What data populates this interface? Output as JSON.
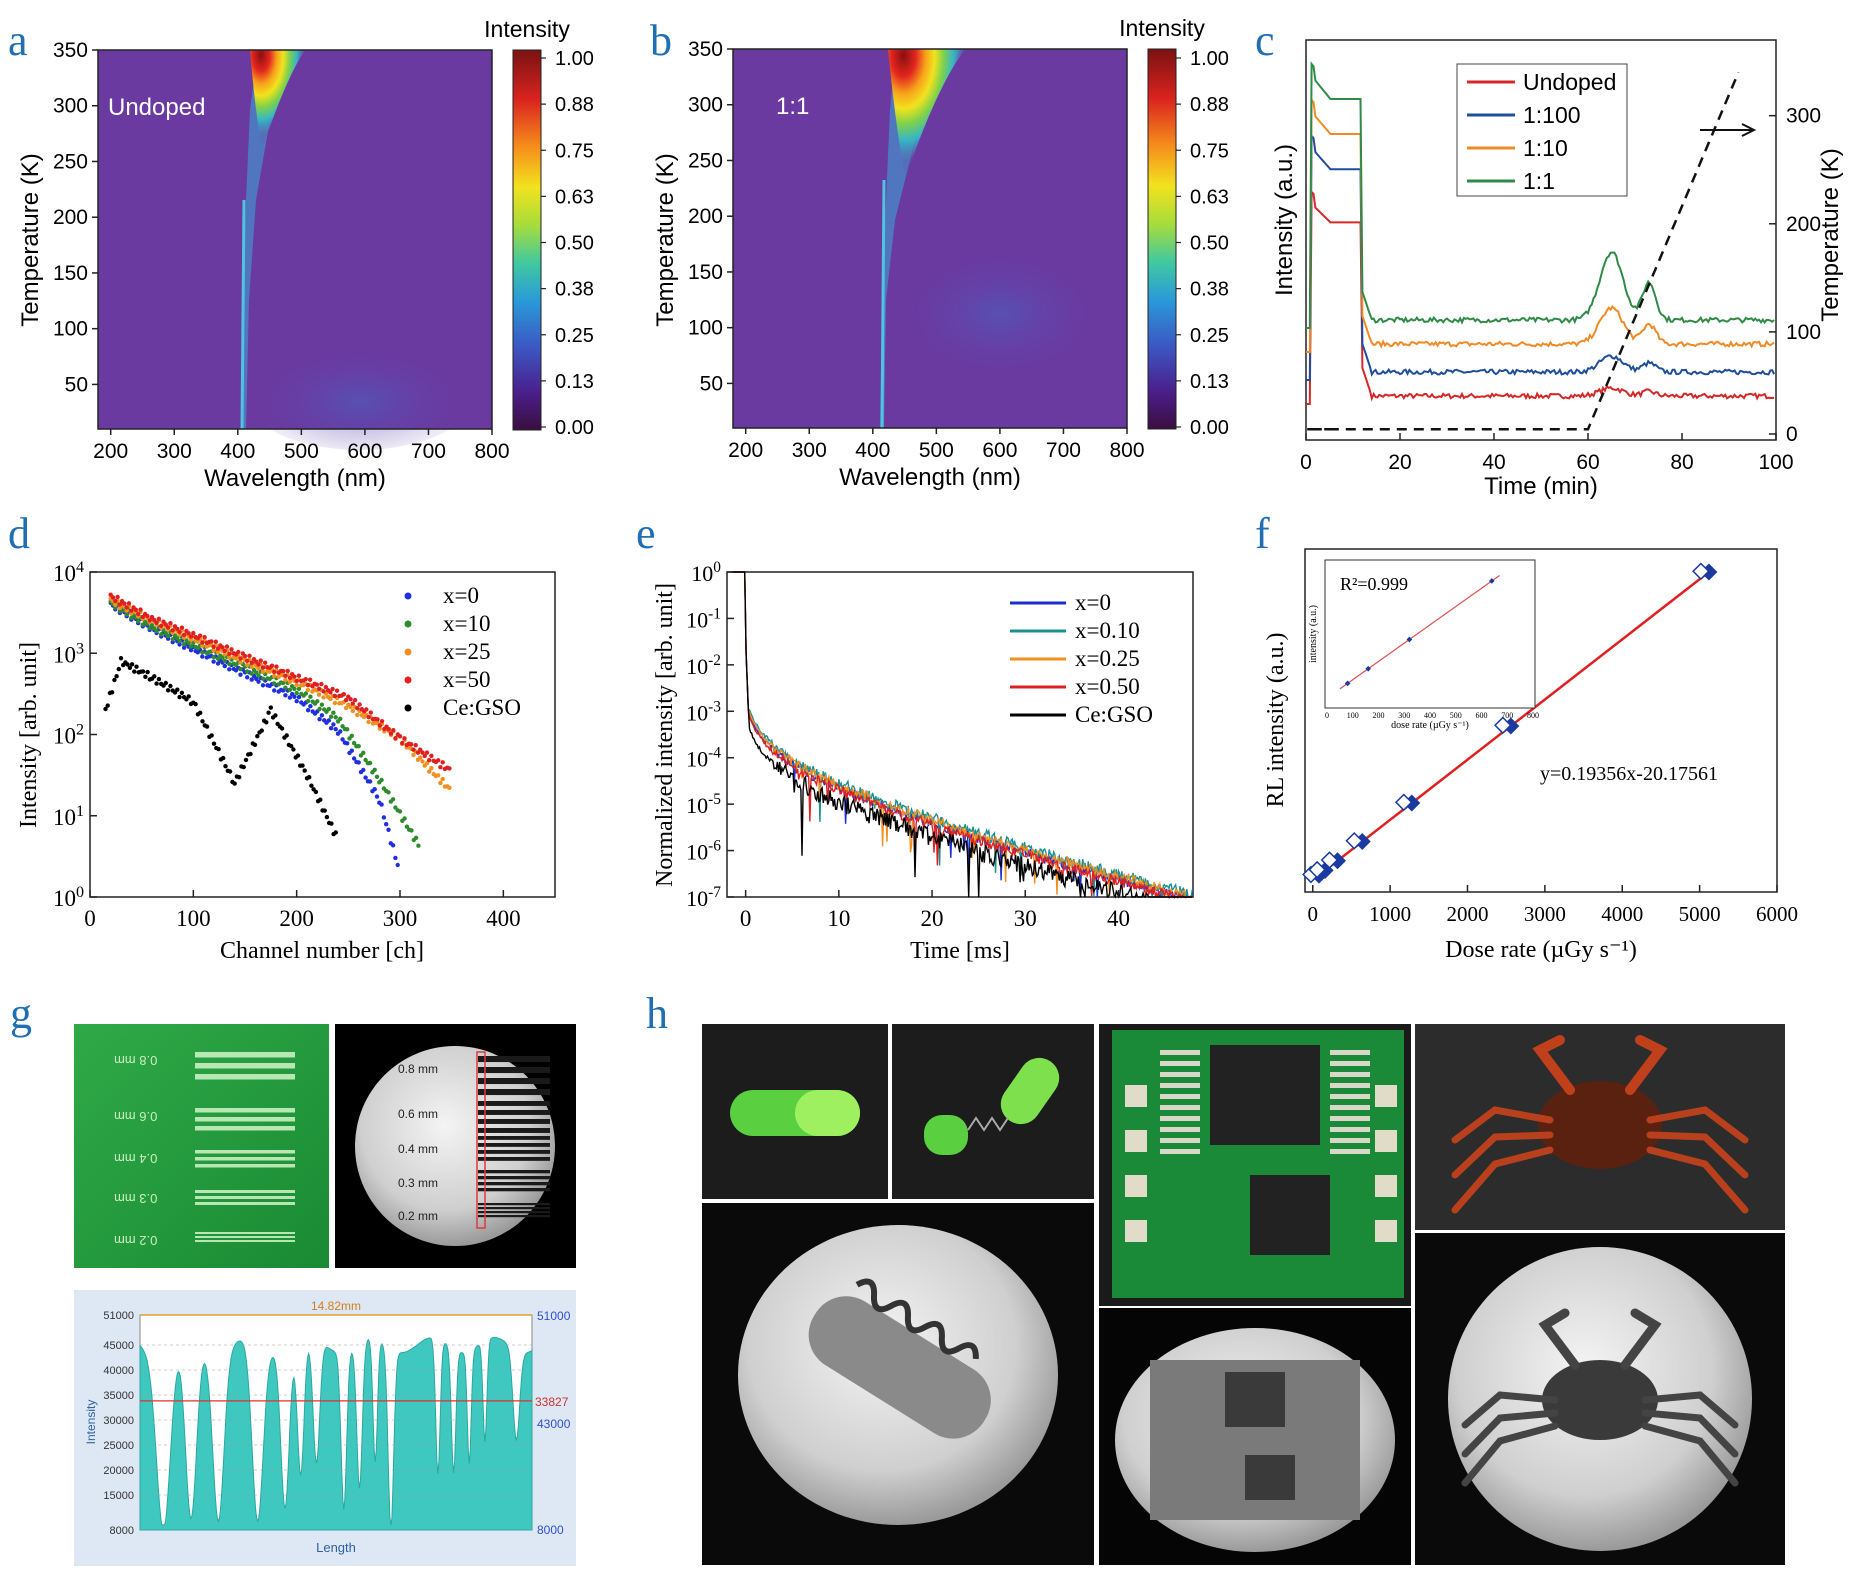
{
  "panel_labels": {
    "a": "a",
    "b": "b",
    "c": "c",
    "d": "d",
    "e": "e",
    "f": "f",
    "g": "g",
    "h": "h"
  },
  "chart_data": [
    {
      "panel": "a",
      "type": "heatmap",
      "xlabel": "Wavelength (nm)",
      "ylabel": "Temperature (K)",
      "xlim": [
        180,
        800
      ],
      "ylim": [
        10,
        350
      ],
      "xticks": [
        200,
        300,
        400,
        500,
        600,
        700,
        800
      ],
      "yticks": [
        50,
        100,
        150,
        200,
        250,
        300,
        350
      ],
      "annotation": "Undoped",
      "colorbar_title": "Intensity",
      "colorbar_ticks": [
        "1.00",
        "0.88",
        "0.75",
        "0.63",
        "0.50",
        "0.38",
        "0.25",
        "0.13",
        "0.00"
      ],
      "colorbar_colors": [
        "#3b0e3e",
        "#4a1f8c",
        "#3b58c4",
        "#2a9ad8",
        "#41c9a0",
        "#a8dc3a",
        "#f2e21e",
        "#f58a1c",
        "#d9231e",
        "#7a1212"
      ],
      "background_color": "#6a3aa0",
      "peak_nm": 425
    },
    {
      "panel": "b",
      "type": "heatmap",
      "xlabel": "Wavelength (nm)",
      "ylabel": "Temperature (K)",
      "xlim": [
        180,
        800
      ],
      "ylim": [
        10,
        350
      ],
      "xticks": [
        200,
        300,
        400,
        500,
        600,
        700,
        800
      ],
      "yticks": [
        50,
        100,
        150,
        200,
        250,
        300,
        350
      ],
      "annotation": "1:1",
      "colorbar_title": "Intensity",
      "colorbar_ticks": [
        "1.00",
        "0.88",
        "0.75",
        "0.63",
        "0.50",
        "0.38",
        "0.25",
        "0.13",
        "0.00"
      ],
      "background_color": "#6a3aa0",
      "peak_nm": 425
    },
    {
      "panel": "c",
      "type": "line",
      "xlabel": "Time (min)",
      "ylabel": "Intensity (a.u.)",
      "y2label": "Temperature (K)",
      "xlim": [
        0,
        100
      ],
      "xticks": [
        0,
        20,
        40,
        60,
        80,
        100
      ],
      "y2lim": [
        0,
        370
      ],
      "y2ticks": [
        0,
        100,
        200,
        300
      ],
      "series": [
        {
          "name": "Undoped",
          "color": "#d62728",
          "irradiated": 0.62,
          "baseline": 0.11,
          "tl_peak": 0.02
        },
        {
          "name": "1:100",
          "color": "#1f4e9c",
          "irradiated": 0.76,
          "baseline": 0.17,
          "tl_peak": 0.04
        },
        {
          "name": "1:10",
          "color": "#f08a24",
          "irradiated": 0.85,
          "baseline": 0.24,
          "tl_peak": 0.09
        },
        {
          "name": "1:1",
          "color": "#2e8b47",
          "irradiated": 0.94,
          "baseline": 0.3,
          "tl_peak": 0.17
        }
      ],
      "temperature_profile": {
        "time": [
          0,
          60,
          92
        ],
        "temperature": [
          10,
          10,
          340
        ],
        "style": "dashed"
      }
    },
    {
      "panel": "d",
      "type": "scatter",
      "xlabel": "Channel number [ch]",
      "ylabel": "Intensity [arb. unit]",
      "xlim": [
        0,
        450
      ],
      "ylim_log10": [
        0,
        4
      ],
      "yscale": "log",
      "xticks": [
        0,
        100,
        200,
        300,
        400
      ],
      "yticks": [
        "10^0",
        "10^1",
        "10^2",
        "10^3",
        "10^4"
      ],
      "series": [
        {
          "name": "x=0",
          "color": "#1f2fe0",
          "x": [
            20,
            60,
            100,
            150,
            200,
            240,
            280,
            300
          ],
          "log10y": [
            3.6,
            3.3,
            3.05,
            2.75,
            2.45,
            2.05,
            1.2,
            0.3
          ]
        },
        {
          "name": "x=10",
          "color": "#2e8b2e",
          "x": [
            20,
            60,
            100,
            150,
            200,
            240,
            280,
            320
          ],
          "log10y": [
            3.62,
            3.32,
            3.1,
            2.82,
            2.55,
            2.2,
            1.45,
            0.6
          ]
        },
        {
          "name": "x=25",
          "color": "#f09020",
          "x": [
            20,
            60,
            100,
            150,
            200,
            250,
            300,
            350
          ],
          "log10y": [
            3.65,
            3.4,
            3.18,
            2.9,
            2.65,
            2.35,
            1.95,
            1.3
          ]
        },
        {
          "name": "x=50",
          "color": "#e02020",
          "x": [
            20,
            60,
            100,
            150,
            200,
            250,
            300,
            350
          ],
          "log10y": [
            3.7,
            3.42,
            3.22,
            2.95,
            2.7,
            2.45,
            1.95,
            1.55
          ]
        },
        {
          "name": "Ce:GSO",
          "color": "#000000",
          "x": [
            15,
            30,
            60,
            100,
            140,
            175,
            210,
            240
          ],
          "log10y": [
            2.3,
            2.9,
            2.7,
            2.4,
            1.4,
            2.3,
            1.5,
            0.7
          ]
        }
      ]
    },
    {
      "panel": "e",
      "type": "line",
      "xlabel": "Time [ms]",
      "ylabel": "Normalized intensity [arb. unit]",
      "xlim": [
        -2,
        48
      ],
      "ylim_log10": [
        -7,
        0
      ],
      "yscale": "log",
      "xticks": [
        0,
        10,
        20,
        30,
        40
      ],
      "yticks": [
        "10^0",
        "10^-1",
        "10^-2",
        "10^-3",
        "10^-4",
        "10^-5",
        "10^-6",
        "10^-7"
      ],
      "series": [
        {
          "name": "x=0",
          "color": "#1a2fd0"
        },
        {
          "name": "x=0.10",
          "color": "#1a9090"
        },
        {
          "name": "x=0.25",
          "color": "#f09020"
        },
        {
          "name": "x=0.50",
          "color": "#e02020"
        },
        {
          "name": "Ce:GSO",
          "color": "#000000"
        }
      ]
    },
    {
      "panel": "f",
      "type": "scatter",
      "xlabel": "Dose rate (µGy s⁻¹)",
      "ylabel": "RL intensity (a.u.)",
      "xlim": [
        -100,
        6000
      ],
      "xticks": [
        0,
        1000,
        2000,
        3000,
        4000,
        5000,
        6000
      ],
      "x": [
        80,
        160,
        320,
        640,
        1280,
        2560,
        5120
      ],
      "fit_label": "y=0.19356x-20.17561",
      "inset": {
        "r2_label": "R²=0.999",
        "xlabel": "dose rate (µGy s⁻¹)",
        "ylabel": "intensity (a.u.)",
        "xticks": [
          0,
          100,
          200,
          300,
          400,
          500,
          600,
          700,
          800
        ],
        "x": [
          80,
          160,
          320,
          640
        ]
      }
    },
    {
      "panel": "g",
      "type": "line",
      "xlabel": "Length",
      "ylabel": "Intensity",
      "ylim": [
        8000,
        51000
      ],
      "yticks": [
        51000,
        45000,
        40000,
        35000,
        30000,
        25000,
        20000,
        15000,
        8000
      ],
      "width_label": "14.82mm",
      "right_labels": [
        "51000",
        "33827",
        "43000",
        "8000"
      ],
      "threshold": 33827,
      "fill_color": "#3ec8c0"
    }
  ],
  "images": {
    "g_target_labels": [
      "0.8 mm",
      "0.6 mm",
      "0.4 mm",
      "0.3 mm",
      "0.2 mm"
    ],
    "g_xray_labels": [
      "0.8 mm",
      "0.6 mm",
      "0.4 mm",
      "0.3 mm",
      "0.2 mm"
    ]
  }
}
